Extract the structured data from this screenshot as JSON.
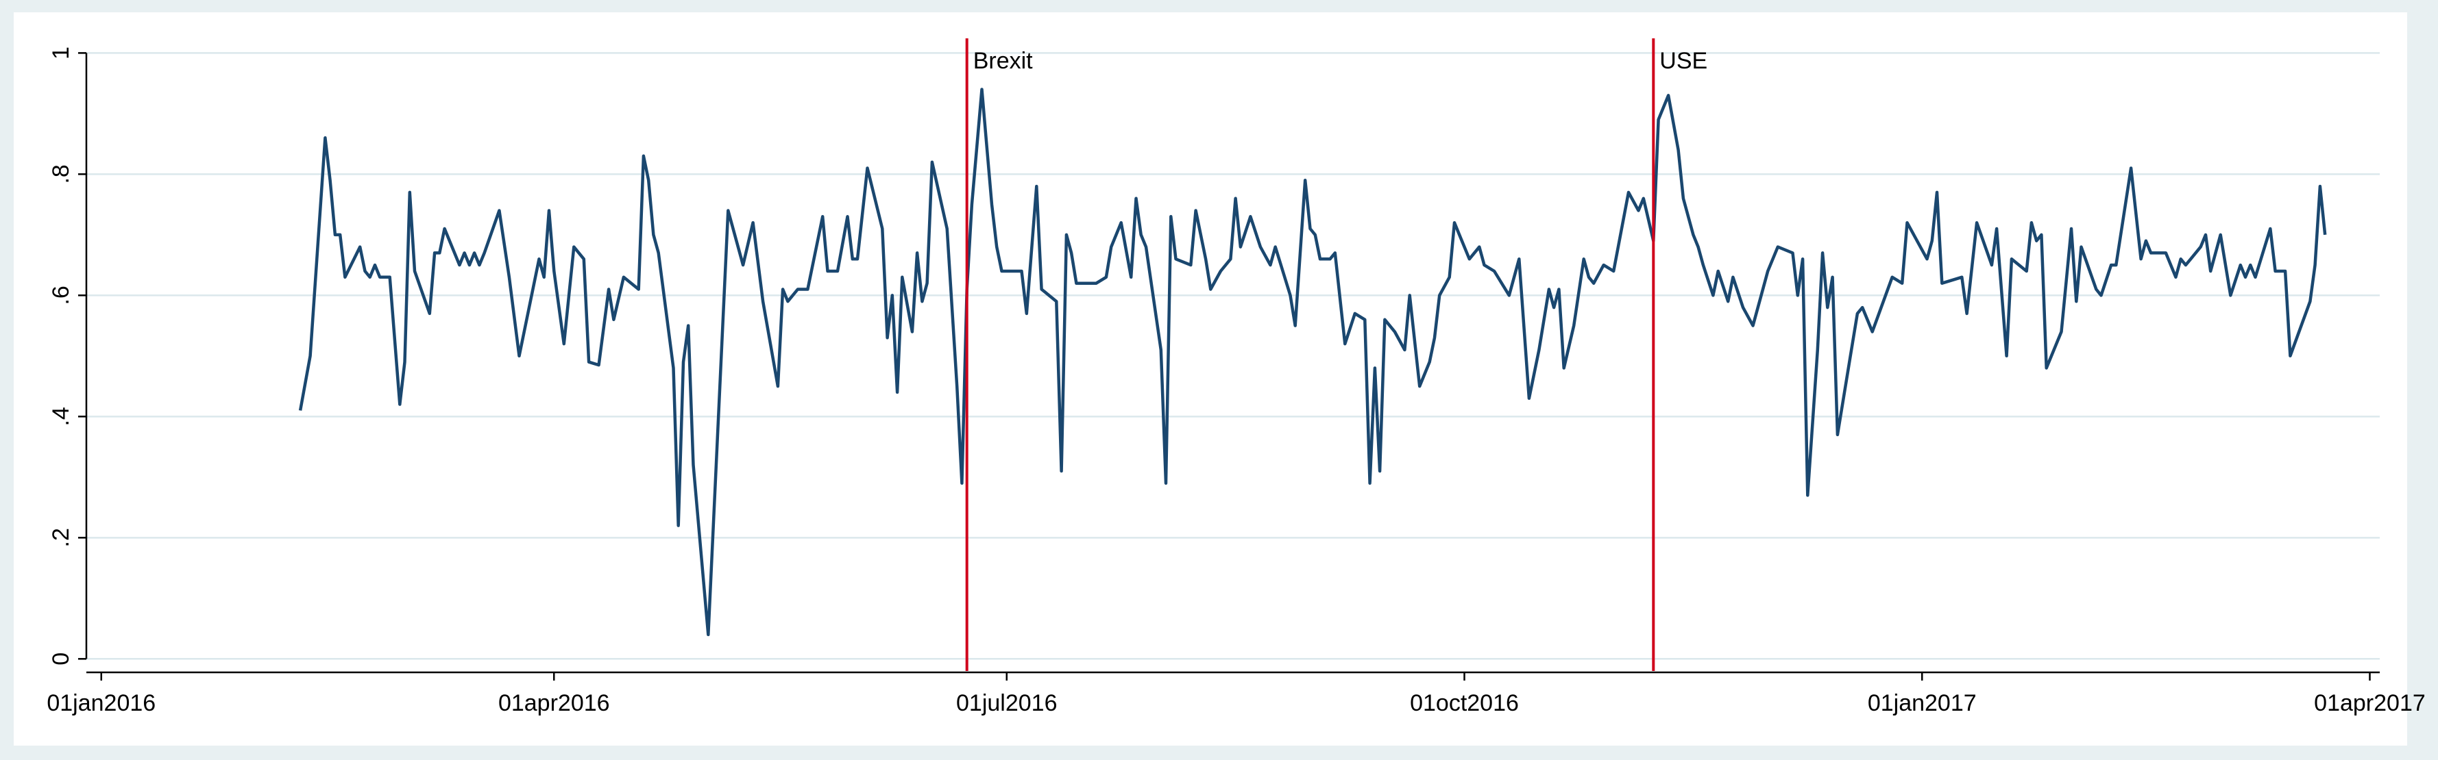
{
  "chart_data": {
    "type": "line",
    "x": [
      "2016-02-10",
      "2016-02-12",
      "2016-02-15",
      "2016-02-16",
      "2016-02-17",
      "2016-02-18",
      "2016-02-19",
      "2016-02-22",
      "2016-02-23",
      "2016-02-24",
      "2016-02-25",
      "2016-02-26",
      "2016-02-28",
      "2016-03-01",
      "2016-03-02",
      "2016-03-03",
      "2016-03-04",
      "2016-03-07",
      "2016-03-08",
      "2016-03-09",
      "2016-03-10",
      "2016-03-13",
      "2016-03-14",
      "2016-03-15",
      "2016-03-16",
      "2016-03-17",
      "2016-03-18",
      "2016-03-21",
      "2016-03-23",
      "2016-03-25",
      "2016-03-29",
      "2016-03-30",
      "2016-03-31",
      "2016-04-01",
      "2016-04-03",
      "2016-04-05",
      "2016-04-07",
      "2016-04-08",
      "2016-04-10",
      "2016-04-12",
      "2016-04-13",
      "2016-04-15",
      "2016-04-18",
      "2016-04-19",
      "2016-04-20",
      "2016-04-21",
      "2016-04-22",
      "2016-04-25",
      "2016-04-26",
      "2016-04-27",
      "2016-04-28",
      "2016-04-29",
      "2016-05-02",
      "2016-05-06",
      "2016-05-09",
      "2016-05-11",
      "2016-05-13",
      "2016-05-16",
      "2016-05-17",
      "2016-05-18",
      "2016-05-20",
      "2016-05-22",
      "2016-05-25",
      "2016-05-26",
      "2016-05-28",
      "2016-05-30",
      "2016-05-31",
      "2016-06-01",
      "2016-06-03",
      "2016-06-06",
      "2016-06-07",
      "2016-06-08",
      "2016-06-09",
      "2016-06-10",
      "2016-06-12",
      "2016-06-13",
      "2016-06-14",
      "2016-06-15",
      "2016-06-16",
      "2016-06-19",
      "2016-06-21",
      "2016-06-22",
      "2016-06-23",
      "2016-06-24",
      "2016-06-26",
      "2016-06-28",
      "2016-06-29",
      "2016-06-30",
      "2016-07-04",
      "2016-07-05",
      "2016-07-07",
      "2016-07-08",
      "2016-07-11",
      "2016-07-12",
      "2016-07-13",
      "2016-07-14",
      "2016-07-15",
      "2016-07-19",
      "2016-07-21",
      "2016-07-22",
      "2016-07-24",
      "2016-07-26",
      "2016-07-27",
      "2016-07-28",
      "2016-07-29",
      "2016-08-01",
      "2016-08-02",
      "2016-08-03",
      "2016-08-04",
      "2016-08-07",
      "2016-08-08",
      "2016-08-10",
      "2016-08-11",
      "2016-08-13",
      "2016-08-15",
      "2016-08-16",
      "2016-08-17",
      "2016-08-19",
      "2016-08-21",
      "2016-08-23",
      "2016-08-24",
      "2016-08-27",
      "2016-08-28",
      "2016-08-30",
      "2016-08-31",
      "2016-09-01",
      "2016-09-02",
      "2016-09-04",
      "2016-09-05",
      "2016-09-07",
      "2016-09-09",
      "2016-09-11",
      "2016-09-12",
      "2016-09-13",
      "2016-09-14",
      "2016-09-15",
      "2016-09-17",
      "2016-09-19",
      "2016-09-20",
      "2016-09-22",
      "2016-09-24",
      "2016-09-25",
      "2016-09-26",
      "2016-09-28",
      "2016-09-29",
      "2016-09-30",
      "2016-10-02",
      "2016-10-04",
      "2016-10-05",
      "2016-10-07",
      "2016-10-10",
      "2016-10-12",
      "2016-10-14",
      "2016-10-16",
      "2016-10-18",
      "2016-10-19",
      "2016-10-20",
      "2016-10-21",
      "2016-10-23",
      "2016-10-25",
      "2016-10-26",
      "2016-10-27",
      "2016-10-29",
      "2016-10-31",
      "2016-11-03",
      "2016-11-05",
      "2016-11-06",
      "2016-11-08",
      "2016-11-09",
      "2016-11-11",
      "2016-11-13",
      "2016-11-14",
      "2016-11-16",
      "2016-11-17",
      "2016-11-18",
      "2016-11-20",
      "2016-11-21",
      "2016-11-23",
      "2016-11-24",
      "2016-11-26",
      "2016-11-28",
      "2016-11-30",
      "2016-12-01",
      "2016-12-03",
      "2016-12-06",
      "2016-12-07",
      "2016-12-08",
      "2016-12-09",
      "2016-12-11",
      "2016-12-12",
      "2016-12-13",
      "2016-12-14",
      "2016-12-15",
      "2016-12-18",
      "2016-12-19",
      "2016-12-20",
      "2016-12-22",
      "2016-12-26",
      "2016-12-28",
      "2016-12-29",
      "2017-01-02",
      "2017-01-03",
      "2017-01-04",
      "2017-01-05",
      "2017-01-09",
      "2017-01-10",
      "2017-01-12",
      "2017-01-15",
      "2017-01-16",
      "2017-01-18",
      "2017-01-19",
      "2017-01-22",
      "2017-01-23",
      "2017-01-24",
      "2017-01-25",
      "2017-01-26",
      "2017-01-29",
      "2017-01-31",
      "2017-02-01",
      "2017-02-02",
      "2017-02-05",
      "2017-02-06",
      "2017-02-08",
      "2017-02-09",
      "2017-02-12",
      "2017-02-14",
      "2017-02-15",
      "2017-02-16",
      "2017-02-19",
      "2017-02-21",
      "2017-02-22",
      "2017-02-23",
      "2017-02-24",
      "2017-02-26",
      "2017-02-27",
      "2017-02-28",
      "2017-03-02",
      "2017-03-04",
      "2017-03-06",
      "2017-03-07",
      "2017-03-08",
      "2017-03-09",
      "2017-03-12",
      "2017-03-13",
      "2017-03-15",
      "2017-03-16",
      "2017-03-20",
      "2017-03-21",
      "2017-03-22",
      "2017-03-23"
    ],
    "values": [
      0.41,
      0.5,
      0.86,
      0.79,
      0.7,
      0.7,
      0.63,
      0.68,
      0.64,
      0.63,
      0.65,
      0.63,
      0.63,
      0.42,
      0.49,
      0.77,
      0.64,
      0.57,
      0.67,
      0.67,
      0.71,
      0.65,
      0.67,
      0.65,
      0.67,
      0.65,
      0.67,
      0.74,
      0.63,
      0.5,
      0.66,
      0.63,
      0.74,
      0.64,
      0.52,
      0.68,
      0.66,
      0.49,
      0.485,
      0.61,
      0.56,
      0.63,
      0.61,
      0.83,
      0.79,
      0.7,
      0.67,
      0.48,
      0.22,
      0.49,
      0.55,
      0.32,
      0.04,
      0.74,
      0.65,
      0.72,
      0.59,
      0.45,
      0.61,
      0.59,
      0.61,
      0.61,
      0.73,
      0.64,
      0.64,
      0.73,
      0.66,
      0.66,
      0.81,
      0.71,
      0.53,
      0.6,
      0.44,
      0.63,
      0.54,
      0.67,
      0.59,
      0.62,
      0.82,
      0.71,
      0.45,
      0.29,
      0.61,
      0.75,
      0.94,
      0.75,
      0.68,
      0.64,
      0.64,
      0.57,
      0.78,
      0.61,
      0.59,
      0.31,
      0.7,
      0.67,
      0.62,
      0.62,
      0.63,
      0.68,
      0.72,
      0.63,
      0.76,
      0.7,
      0.68,
      0.51,
      0.29,
      0.73,
      0.66,
      0.65,
      0.74,
      0.66,
      0.61,
      0.64,
      0.66,
      0.76,
      0.68,
      0.73,
      0.68,
      0.65,
      0.68,
      0.6,
      0.55,
      0.79,
      0.71,
      0.7,
      0.66,
      0.66,
      0.67,
      0.52,
      0.57,
      0.56,
      0.29,
      0.48,
      0.31,
      0.56,
      0.54,
      0.51,
      0.6,
      0.45,
      0.49,
      0.53,
      0.6,
      0.63,
      0.72,
      0.7,
      0.66,
      0.68,
      0.65,
      0.64,
      0.6,
      0.66,
      0.43,
      0.51,
      0.61,
      0.58,
      0.61,
      0.48,
      0.55,
      0.66,
      0.63,
      0.62,
      0.65,
      0.64,
      0.77,
      0.74,
      0.76,
      0.69,
      0.89,
      0.93,
      0.84,
      0.76,
      0.7,
      0.68,
      0.65,
      0.6,
      0.64,
      0.59,
      0.63,
      0.58,
      0.55,
      0.61,
      0.64,
      0.68,
      0.67,
      0.6,
      0.66,
      0.27,
      0.51,
      0.67,
      0.58,
      0.63,
      0.37,
      0.52,
      0.57,
      0.58,
      0.54,
      0.63,
      0.62,
      0.72,
      0.66,
      0.69,
      0.77,
      0.62,
      0.63,
      0.57,
      0.72,
      0.65,
      0.71,
      0.5,
      0.66,
      0.64,
      0.72,
      0.69,
      0.7,
      0.48,
      0.54,
      0.71,
      0.59,
      0.68,
      0.61,
      0.6,
      0.65,
      0.65,
      0.81,
      0.66,
      0.69,
      0.67,
      0.67,
      0.63,
      0.66,
      0.65,
      0.66,
      0.68,
      0.7,
      0.64,
      0.7,
      0.6,
      0.65,
      0.63,
      0.65,
      0.63,
      0.71,
      0.64,
      0.64,
      0.5,
      0.59,
      0.65,
      0.78,
      0.7
    ],
    "color": "#1a476f",
    "xlim": [
      "2015-12-29",
      "2017-04-03"
    ],
    "xticks": [
      {
        "value": "2016-01-01",
        "label": "01jan2016"
      },
      {
        "value": "2016-04-01",
        "label": "01apr2016"
      },
      {
        "value": "2016-07-01",
        "label": "01jul2016"
      },
      {
        "value": "2016-10-01",
        "label": "01oct2016"
      },
      {
        "value": "2017-01-01",
        "label": "01jan2017"
      },
      {
        "value": "2017-04-01",
        "label": "01apr2017"
      }
    ],
    "ylim": [
      -0.02,
      1.04
    ],
    "yticks": [
      0,
      {
        "value": 0.2,
        "label": ".2"
      },
      {
        "value": 0.4,
        "label": ".4"
      },
      {
        "value": 0.6,
        "label": ".6"
      },
      {
        "value": 0.8,
        "label": ".8"
      },
      1
    ],
    "grid": true,
    "events": [
      {
        "x": "2016-06-23",
        "label": "Brexit"
      },
      {
        "x": "2016-11-08",
        "label": "USE"
      }
    ],
    "event_color": "#d0021b"
  }
}
